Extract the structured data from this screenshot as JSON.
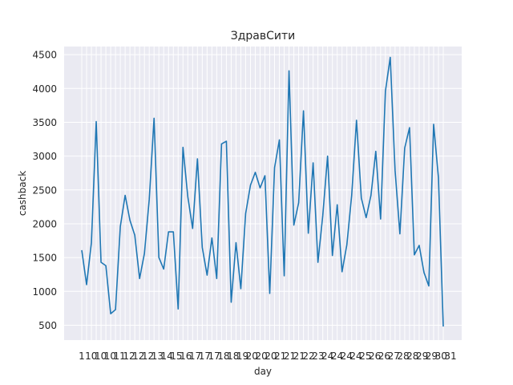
{
  "chart_data": {
    "type": "line",
    "title": "ЗдравСити",
    "xlabel": "day",
    "ylabel": "cashback",
    "ylim": [
      280,
      4620
    ],
    "yticks": [
      500,
      1000,
      1500,
      2000,
      2500,
      3000,
      3500,
      4000,
      4500
    ],
    "grid": true,
    "style": "seaborn-darkgrid",
    "x_tick_labels": [
      "1",
      "10",
      "10",
      "10",
      "11",
      "12",
      "12",
      "12",
      "13",
      "14",
      "15",
      "16",
      "17",
      "17",
      "17",
      "18",
      "18",
      "19",
      "20",
      "20",
      "20",
      "21",
      "21",
      "21",
      "22",
      "23",
      "24",
      "24",
      "24",
      "24",
      "25",
      "26",
      "26",
      "27",
      "28",
      "28",
      "29",
      "29",
      "30",
      "31"
    ],
    "series": [
      {
        "color": "#1f77b4",
        "values": [
          1610,
          1100,
          1720,
          3510,
          1430,
          1380,
          670,
          730,
          1960,
          2420,
          2050,
          1830,
          1190,
          1560,
          2360,
          3560,
          1500,
          1330,
          1880,
          1880,
          740,
          3130,
          2400,
          1930,
          2960,
          1650,
          1240,
          1790,
          1190,
          3180,
          3220,
          840,
          1720,
          1040,
          2150,
          2570,
          2760,
          2530,
          2710,
          970,
          2830,
          3240,
          1230,
          4260,
          1980,
          2310,
          3670,
          1860,
          2900,
          1430,
          2120,
          3000,
          1530,
          2280,
          1290,
          1690,
          2420,
          3530,
          2380,
          2090,
          2420,
          3070,
          2070,
          3960,
          4460,
          2790,
          1850,
          3120,
          3420,
          1540,
          1680,
          1280,
          1080,
          3470,
          2680,
          480
        ]
      }
    ]
  }
}
